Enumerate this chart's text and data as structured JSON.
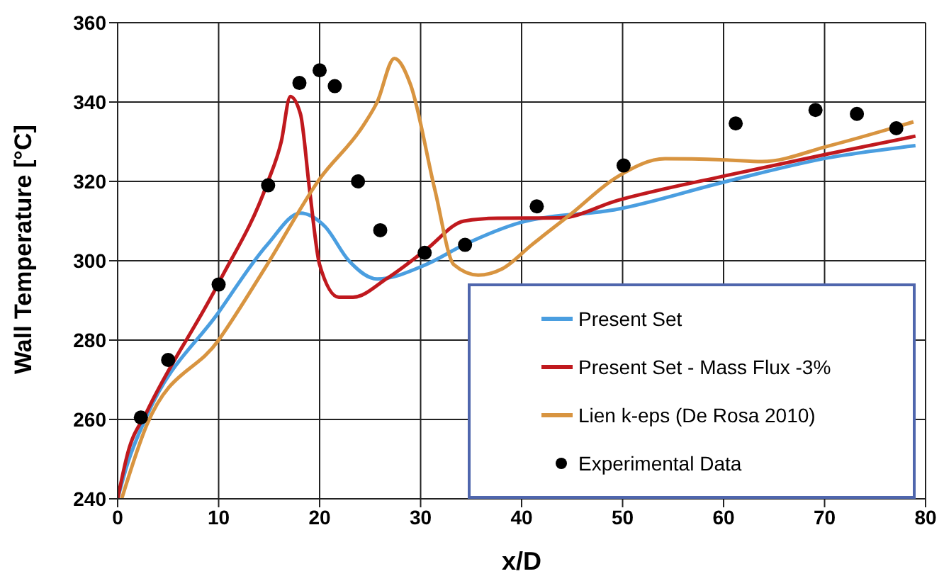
{
  "chart_data": {
    "type": "line",
    "xlabel": "x/D",
    "ylabel": "Wall Temperature [°C]",
    "xlim": [
      0,
      80
    ],
    "xticks": [
      0,
      10,
      20,
      30,
      40,
      50,
      60,
      70,
      80
    ],
    "ylim": [
      240,
      360
    ],
    "yticks": [
      240,
      260,
      280,
      300,
      320,
      340,
      360
    ],
    "grid": true,
    "legend": "bottom right",
    "line_style": "solid",
    "series": [
      {
        "name": "Present Set",
        "color": "#4a9ee0",
        "x": [
          0,
          1,
          2.9,
          10,
          14.8,
          18.1,
          20.5,
          22.9,
          25.7,
          30.5,
          34.3,
          40,
          49.5,
          60.3,
          70.5,
          79
        ],
        "values": [
          240,
          249,
          261,
          287,
          304,
          312,
          308.7,
          300,
          295.4,
          299,
          304,
          309.7,
          313,
          320,
          326,
          329
        ]
      },
      {
        "name": "Present Set - Mass Flux -3%",
        "color": "#c0191e",
        "x": [
          0,
          1,
          2.9,
          10,
          14.8,
          16.2,
          17.1,
          18.1,
          19,
          20,
          21.9,
          23.3,
          26.7,
          30.5,
          34.3,
          37.6,
          43.8,
          49.5,
          60.3,
          70.5,
          79
        ],
        "values": [
          240,
          251.5,
          262,
          294.4,
          319.4,
          330,
          341.4,
          337,
          318,
          299,
          290.8,
          290.8,
          295.6,
          302.7,
          310,
          310.7,
          310.8,
          315.2,
          321.5,
          327,
          331.4
        ]
      },
      {
        "name": "Lien k-eps (De Rosa 2010)",
        "color": "#d89440",
        "x": [
          0.4,
          2.9,
          10,
          14.8,
          20,
          24.3,
          25.7,
          27.4,
          29,
          31.4,
          33.3,
          35.7,
          38.1,
          41,
          44.8,
          49.5,
          54.2,
          60.3,
          63.8,
          70.5,
          78.8
        ],
        "values": [
          240,
          258.7,
          280,
          299,
          320.6,
          334,
          340,
          351,
          344.4,
          318,
          299,
          296.4,
          298,
          304,
          311.6,
          321.2,
          325.7,
          325.4,
          325,
          329,
          335
        ]
      },
      {
        "name": "Experimental Data",
        "type": "scatter",
        "marker": "circle",
        "color": "#000000",
        "x": [
          2.3,
          5,
          10,
          14.9,
          18,
          20,
          21.5,
          23.8,
          26,
          30.4,
          34.4,
          41.5,
          50.1,
          61.2,
          69.1,
          73.2,
          77.1
        ],
        "values": [
          260.5,
          275,
          294,
          319,
          344.8,
          348,
          344,
          320,
          307.7,
          302,
          304,
          313.7,
          324,
          334.6,
          338,
          337,
          333.4
        ]
      }
    ]
  }
}
